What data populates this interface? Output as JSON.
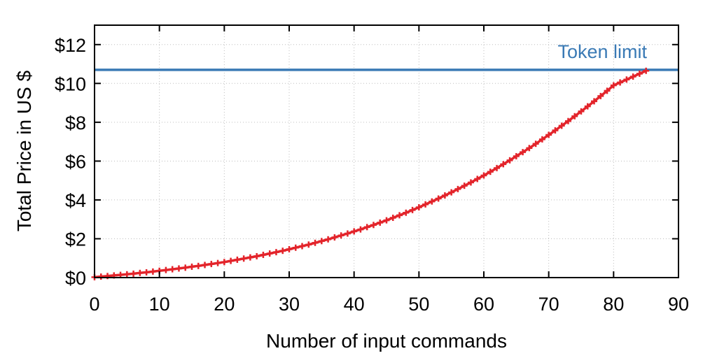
{
  "chart_data": {
    "type": "line",
    "xlabel": "Number of input commands",
    "ylabel": "Total Price in US $",
    "xlim": [
      0,
      90
    ],
    "ylim": [
      0,
      13
    ],
    "x_ticks": [
      "0",
      "10",
      "20",
      "30",
      "40",
      "50",
      "60",
      "70",
      "80",
      "90"
    ],
    "y_ticks": [
      "$0",
      "$2",
      "$4",
      "$6",
      "$8",
      "$10",
      "$12"
    ],
    "grid": true,
    "reference_line": {
      "label": "Token limit",
      "y": 10.7,
      "color": "#3a7ab5"
    },
    "series": [
      {
        "color": "#e3242b",
        "marker": "plus",
        "x": [
          0,
          1,
          2,
          3,
          4,
          5,
          6,
          7,
          8,
          9,
          10,
          11,
          12,
          13,
          14,
          15,
          16,
          17,
          18,
          19,
          20,
          21,
          22,
          23,
          24,
          25,
          26,
          27,
          28,
          29,
          30,
          31,
          32,
          33,
          34,
          35,
          36,
          37,
          38,
          39,
          40,
          41,
          42,
          43,
          44,
          45,
          46,
          47,
          48,
          49,
          50,
          51,
          52,
          53,
          54,
          55,
          56,
          57,
          58,
          59,
          60,
          61,
          62,
          63,
          64,
          65,
          66,
          67,
          68,
          69,
          70,
          71,
          72,
          73,
          74,
          75,
          76,
          77,
          78,
          79,
          80,
          81,
          82,
          83,
          84,
          85
        ],
        "y": [
          0.02,
          0.05,
          0.08,
          0.11,
          0.14,
          0.17,
          0.2,
          0.24,
          0.27,
          0.31,
          0.35,
          0.39,
          0.43,
          0.47,
          0.51,
          0.56,
          0.6,
          0.65,
          0.7,
          0.75,
          0.8,
          0.86,
          0.92,
          0.98,
          1.04,
          1.1,
          1.17,
          1.24,
          1.31,
          1.38,
          1.46,
          1.54,
          1.62,
          1.7,
          1.79,
          1.88,
          1.97,
          2.07,
          2.17,
          2.27,
          2.38,
          2.48,
          2.6,
          2.71,
          2.83,
          2.95,
          3.08,
          3.21,
          3.34,
          3.48,
          3.62,
          3.77,
          3.92,
          4.07,
          4.23,
          4.39,
          4.56,
          4.73,
          4.9,
          5.08,
          5.26,
          5.45,
          5.64,
          5.84,
          6.04,
          6.25,
          6.46,
          6.67,
          6.89,
          7.12,
          7.35,
          7.58,
          7.82,
          8.06,
          8.31,
          8.56,
          8.82,
          9.08,
          9.35,
          9.62,
          9.9,
          10.05,
          10.2,
          10.35,
          10.5,
          10.65
        ]
      }
    ]
  }
}
